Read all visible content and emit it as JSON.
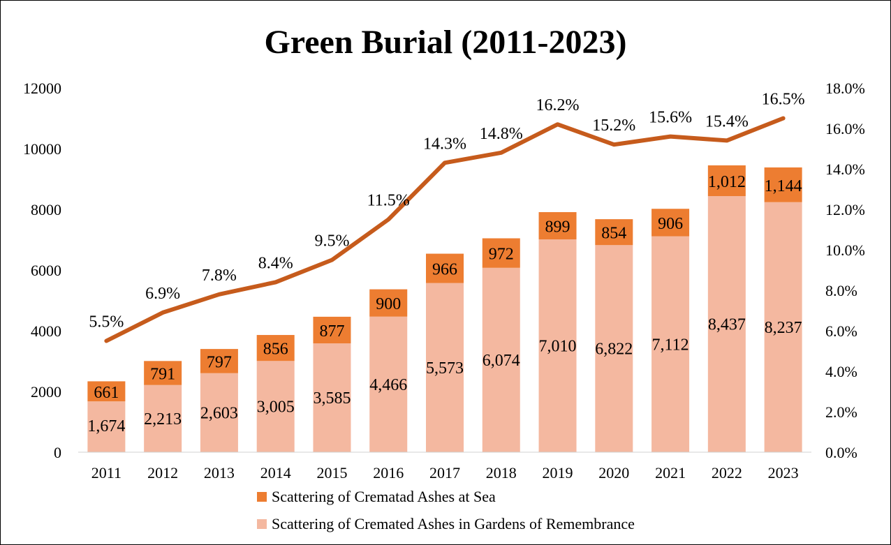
{
  "chart_data": {
    "type": "bar+line",
    "title": "Green Burial (2011-2023)",
    "categories": [
      "2011",
      "2012",
      "2013",
      "2014",
      "2015",
      "2016",
      "2017",
      "2018",
      "2019",
      "2020",
      "2021",
      "2022",
      "2023"
    ],
    "series": [
      {
        "name": "Scattering of Cremated Ashes in Gardens of Remembrance",
        "type": "stacked-bar",
        "axis": "left",
        "color": "#F4B8A0",
        "values": [
          1674,
          2213,
          2603,
          3005,
          3585,
          4466,
          5573,
          6074,
          7010,
          6822,
          7112,
          8437,
          8237
        ],
        "labels": [
          "1,674",
          "2,213",
          "2,603",
          "3,005",
          "3,585",
          "4,466",
          "5,573",
          "6,074",
          "7,010",
          "6,822",
          "7,112",
          "8,437",
          "8,237"
        ]
      },
      {
        "name": "Scattering of Crematad Ashes at Sea",
        "type": "stacked-bar",
        "axis": "left",
        "color": "#ED7D31",
        "values": [
          661,
          791,
          797,
          856,
          877,
          900,
          966,
          972,
          899,
          854,
          906,
          1012,
          1144
        ],
        "labels": [
          "661",
          "791",
          "797",
          "856",
          "877",
          "900",
          "966",
          "972",
          "899",
          "854",
          "906",
          "1,012",
          "1,144"
        ]
      },
      {
        "type": "line",
        "axis": "right",
        "color": "#C65B1C",
        "values": [
          5.5,
          6.9,
          7.8,
          8.4,
          9.5,
          11.5,
          14.3,
          14.8,
          16.2,
          15.2,
          15.6,
          15.4,
          16.5
        ],
        "labels": [
          "5.5%",
          "6.9%",
          "7.8%",
          "8.4%",
          "9.5%",
          "11.5%",
          "14.3%",
          "14.8%",
          "16.2%",
          "15.2%",
          "15.6%",
          "15.4%",
          "16.5%"
        ]
      }
    ],
    "ylim": [
      0,
      12000
    ],
    "yticks": [
      "0",
      "2000",
      "4000",
      "6000",
      "8000",
      "10000",
      "12000"
    ],
    "y2lim": [
      0,
      18
    ],
    "y2ticks": [
      "0.0%",
      "2.0%",
      "4.0%",
      "6.0%",
      "8.0%",
      "10.0%",
      "12.0%",
      "14.0%",
      "16.0%",
      "18.0%"
    ],
    "grid": false,
    "legend_position": "bottom",
    "legend": [
      "Scattering of Crematad Ashes at Sea",
      "Scattering of Cremated Ashes in Gardens of Remembrance"
    ]
  }
}
